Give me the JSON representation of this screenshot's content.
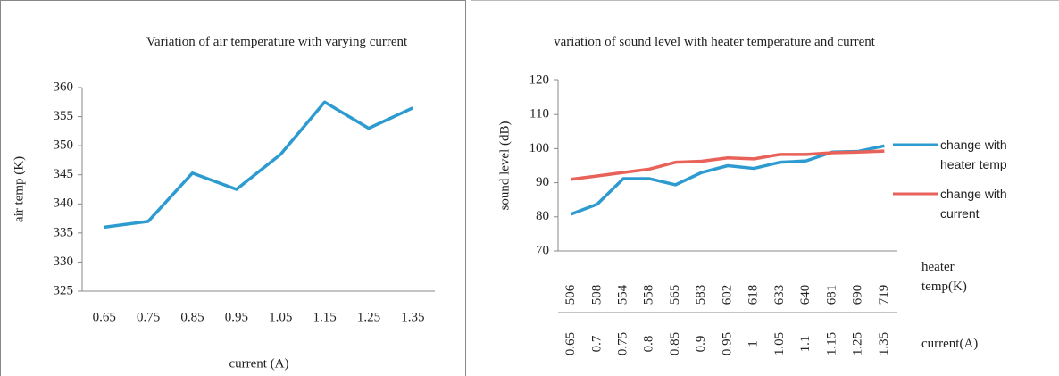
{
  "chart_data": [
    {
      "type": "line",
      "title": "Variation of air temperature with varying current",
      "x_label": "current (A)",
      "y_label": "air temp (K)",
      "categories": [
        "0.65",
        "0.75",
        "0.85",
        "0.95",
        "1.05",
        "1.15",
        "1.25",
        "1.35"
      ],
      "series": [
        {
          "name": null,
          "color": "#2e9bd0",
          "values": [
            336,
            337,
            345.3,
            342.5,
            348.5,
            357.5,
            353,
            356.5
          ]
        }
      ],
      "ylim": [
        325,
        360
      ],
      "yticks": [
        325,
        330,
        335,
        340,
        345,
        350,
        355,
        360
      ],
      "grid": false
    },
    {
      "type": "line",
      "title": "variation of sound level with heater temperature and current",
      "y_label": "sound level (dB)",
      "x_label": "heater temp(K)",
      "x2_label": "current(A)",
      "categories": [
        "506",
        "508",
        "554",
        "558",
        "565",
        "583",
        "602",
        "618",
        "633",
        "640",
        "681",
        "690",
        "719"
      ],
      "categories2": [
        "0.65",
        "0.7",
        "0.75",
        "0.8",
        "0.85",
        "0.9",
        "0.95",
        "1",
        "1.05",
        "1.1",
        "1.15",
        "1.25",
        "1.35"
      ],
      "series": [
        {
          "name": "change with heater temp",
          "color": "#2e9bd0",
          "values": [
            80.8,
            83.7,
            91.2,
            91.2,
            89.4,
            93,
            95,
            94.2,
            96,
            96.4,
            99,
            99.2,
            100.8
          ]
        },
        {
          "name": "change with current",
          "color": "#e8625a",
          "values": [
            91,
            92,
            93,
            94,
            96,
            96.3,
            97.3,
            97,
            98.3,
            98.3,
            98.8,
            99,
            99.3
          ]
        }
      ],
      "ylim": [
        70,
        120
      ],
      "yticks": [
        70,
        80,
        90,
        100,
        110,
        120
      ],
      "grid": false,
      "legend": "right"
    }
  ]
}
